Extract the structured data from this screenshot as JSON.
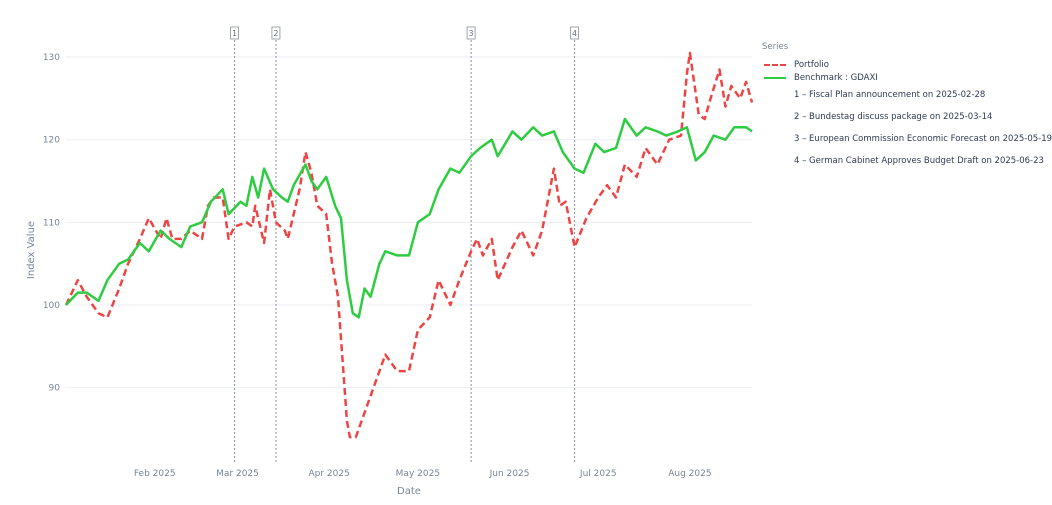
{
  "chart_data": {
    "type": "line",
    "xlabel": "Date",
    "ylabel": "Index Value",
    "x_range": [
      "2025-01-02",
      "2025-08-22"
    ],
    "ylim": [
      81,
      134
    ],
    "y_ticks": [
      90,
      100,
      110,
      120,
      130
    ],
    "x_ticks": [
      {
        "date": "2025-02-01",
        "label": "Feb 2025"
      },
      {
        "date": "2025-03-01",
        "label": "Mar 2025"
      },
      {
        "date": "2025-04-01",
        "label": "Apr 2025"
      },
      {
        "date": "2025-05-01",
        "label": "May 2025"
      },
      {
        "date": "2025-06-01",
        "label": "Jun 2025"
      },
      {
        "date": "2025-07-01",
        "label": "Jul 2025"
      },
      {
        "date": "2025-08-01",
        "label": "Aug 2025"
      }
    ],
    "grid": true,
    "legend_title": "Series",
    "legend_position": "right",
    "series": [
      {
        "name": "Portfolio",
        "color": "#ef4444",
        "dash": true,
        "points": [
          [
            "2025-01-02",
            100
          ],
          [
            "2025-01-06",
            103
          ],
          [
            "2025-01-09",
            101
          ],
          [
            "2025-01-13",
            99
          ],
          [
            "2025-01-16",
            98.5
          ],
          [
            "2025-01-20",
            102
          ],
          [
            "2025-01-23",
            105
          ],
          [
            "2025-01-27",
            108
          ],
          [
            "2025-01-30",
            110.5
          ],
          [
            "2025-02-03",
            108
          ],
          [
            "2025-02-05",
            110.5
          ],
          [
            "2025-02-07",
            108
          ],
          [
            "2025-02-10",
            108
          ],
          [
            "2025-02-13",
            109
          ],
          [
            "2025-02-17",
            108
          ],
          [
            "2025-02-19",
            112
          ],
          [
            "2025-02-21",
            113
          ],
          [
            "2025-02-24",
            113
          ],
          [
            "2025-02-26",
            108
          ],
          [
            "2025-02-28",
            109.5
          ],
          [
            "2025-03-04",
            110
          ],
          [
            "2025-03-06",
            109.5
          ],
          [
            "2025-03-07",
            112
          ],
          [
            "2025-03-10",
            107.5
          ],
          [
            "2025-03-12",
            114
          ],
          [
            "2025-03-14",
            110
          ],
          [
            "2025-03-17",
            109
          ],
          [
            "2025-03-18",
            108
          ],
          [
            "2025-03-20",
            111
          ],
          [
            "2025-03-22",
            114
          ],
          [
            "2025-03-24",
            118.5
          ],
          [
            "2025-03-26",
            116
          ],
          [
            "2025-03-28",
            112
          ],
          [
            "2025-03-31",
            111
          ],
          [
            "2025-04-02",
            105
          ],
          [
            "2025-04-04",
            101
          ],
          [
            "2025-04-07",
            86
          ],
          [
            "2025-04-08",
            84
          ],
          [
            "2025-04-10",
            84
          ],
          [
            "2025-04-14",
            88
          ],
          [
            "2025-04-17",
            91
          ],
          [
            "2025-04-20",
            94
          ],
          [
            "2025-04-24",
            92
          ],
          [
            "2025-04-28",
            92
          ],
          [
            "2025-05-01",
            97
          ],
          [
            "2025-05-05",
            98.5
          ],
          [
            "2025-05-08",
            103
          ],
          [
            "2025-05-12",
            100
          ],
          [
            "2025-05-15",
            103
          ],
          [
            "2025-05-19",
            106.5
          ],
          [
            "2025-05-21",
            108
          ],
          [
            "2025-05-23",
            106
          ],
          [
            "2025-05-26",
            108
          ],
          [
            "2025-05-28",
            103
          ],
          [
            "2025-06-02",
            107
          ],
          [
            "2025-06-05",
            109
          ],
          [
            "2025-06-09",
            106
          ],
          [
            "2025-06-12",
            109
          ],
          [
            "2025-06-16",
            116.5
          ],
          [
            "2025-06-18",
            112
          ],
          [
            "2025-06-20",
            112.5
          ],
          [
            "2025-06-23",
            107
          ],
          [
            "2025-06-27",
            110.5
          ],
          [
            "2025-07-01",
            113
          ],
          [
            "2025-07-04",
            114.5
          ],
          [
            "2025-07-07",
            113
          ],
          [
            "2025-07-10",
            117
          ],
          [
            "2025-07-14",
            115.5
          ],
          [
            "2025-07-17",
            119
          ],
          [
            "2025-07-21",
            117
          ],
          [
            "2025-07-25",
            120
          ],
          [
            "2025-07-29",
            120.5
          ],
          [
            "2025-07-31",
            128
          ],
          [
            "2025-08-01",
            130.5
          ],
          [
            "2025-08-04",
            123
          ],
          [
            "2025-08-06",
            122.5
          ],
          [
            "2025-08-08",
            125
          ],
          [
            "2025-08-11",
            128.5
          ],
          [
            "2025-08-13",
            124
          ],
          [
            "2025-08-15",
            126.5
          ],
          [
            "2025-08-18",
            125
          ],
          [
            "2025-08-20",
            127
          ],
          [
            "2025-08-22",
            124.5
          ]
        ]
      },
      {
        "name": "Benchmark : GDAXI",
        "color": "#2ecc40",
        "dash": false,
        "points": [
          [
            "2025-01-02",
            100
          ],
          [
            "2025-01-06",
            101.5
          ],
          [
            "2025-01-09",
            101.5
          ],
          [
            "2025-01-13",
            100.5
          ],
          [
            "2025-01-16",
            103
          ],
          [
            "2025-01-20",
            105
          ],
          [
            "2025-01-23",
            105.5
          ],
          [
            "2025-01-27",
            107.5
          ],
          [
            "2025-01-30",
            106.5
          ],
          [
            "2025-02-03",
            109
          ],
          [
            "2025-02-06",
            108
          ],
          [
            "2025-02-10",
            107
          ],
          [
            "2025-02-13",
            109.5
          ],
          [
            "2025-02-17",
            110
          ],
          [
            "2025-02-20",
            112.5
          ],
          [
            "2025-02-24",
            114
          ],
          [
            "2025-02-26",
            111
          ],
          [
            "2025-03-02",
            112.5
          ],
          [
            "2025-03-04",
            112
          ],
          [
            "2025-03-06",
            115.5
          ],
          [
            "2025-03-08",
            113
          ],
          [
            "2025-03-10",
            116.5
          ],
          [
            "2025-03-13",
            114
          ],
          [
            "2025-03-16",
            113
          ],
          [
            "2025-03-18",
            112.5
          ],
          [
            "2025-03-20",
            114.5
          ],
          [
            "2025-03-24",
            117
          ],
          [
            "2025-03-26",
            115
          ],
          [
            "2025-03-28",
            114
          ],
          [
            "2025-03-31",
            115.5
          ],
          [
            "2025-04-03",
            112
          ],
          [
            "2025-04-05",
            110.5
          ],
          [
            "2025-04-07",
            103
          ],
          [
            "2025-04-09",
            99
          ],
          [
            "2025-04-11",
            98.5
          ],
          [
            "2025-04-13",
            102
          ],
          [
            "2025-04-15",
            101
          ],
          [
            "2025-04-18",
            105
          ],
          [
            "2025-04-20",
            106.5
          ],
          [
            "2025-04-24",
            106
          ],
          [
            "2025-04-28",
            106
          ],
          [
            "2025-05-01",
            110
          ],
          [
            "2025-05-05",
            111
          ],
          [
            "2025-05-08",
            114
          ],
          [
            "2025-05-12",
            116.5
          ],
          [
            "2025-05-15",
            116
          ],
          [
            "2025-05-19",
            118
          ],
          [
            "2025-05-22",
            119
          ],
          [
            "2025-05-26",
            120
          ],
          [
            "2025-05-28",
            118
          ],
          [
            "2025-06-02",
            121
          ],
          [
            "2025-06-05",
            120
          ],
          [
            "2025-06-09",
            121.5
          ],
          [
            "2025-06-12",
            120.5
          ],
          [
            "2025-06-16",
            121
          ],
          [
            "2025-06-19",
            118.5
          ],
          [
            "2025-06-23",
            116.5
          ],
          [
            "2025-06-26",
            116
          ],
          [
            "2025-06-30",
            119.5
          ],
          [
            "2025-07-03",
            118.5
          ],
          [
            "2025-07-07",
            119
          ],
          [
            "2025-07-10",
            122.5
          ],
          [
            "2025-07-14",
            120.5
          ],
          [
            "2025-07-17",
            121.5
          ],
          [
            "2025-07-21",
            121
          ],
          [
            "2025-07-24",
            120.5
          ],
          [
            "2025-07-28",
            121
          ],
          [
            "2025-07-31",
            121.5
          ],
          [
            "2025-08-03",
            117.5
          ],
          [
            "2025-08-06",
            118.5
          ],
          [
            "2025-08-09",
            120.5
          ],
          [
            "2025-08-13",
            120
          ],
          [
            "2025-08-16",
            121.5
          ],
          [
            "2025-08-20",
            121.5
          ],
          [
            "2025-08-22",
            121
          ]
        ]
      }
    ],
    "events": [
      {
        "marker": "1",
        "date": "2025-02-28",
        "label": "1 – Fiscal Plan announcement on 2025-02-28"
      },
      {
        "marker": "2",
        "date": "2025-03-14",
        "label": "2 – Bundestag discuss package on 2025-03-14"
      },
      {
        "marker": "3",
        "date": "2025-05-19",
        "label": "3 – European Commission Economic Forecast on 2025-05-19"
      },
      {
        "marker": "4",
        "date": "2025-06-23",
        "label": "4 – German Cabinet Approves Budget Draft on 2025-06-23"
      }
    ]
  }
}
